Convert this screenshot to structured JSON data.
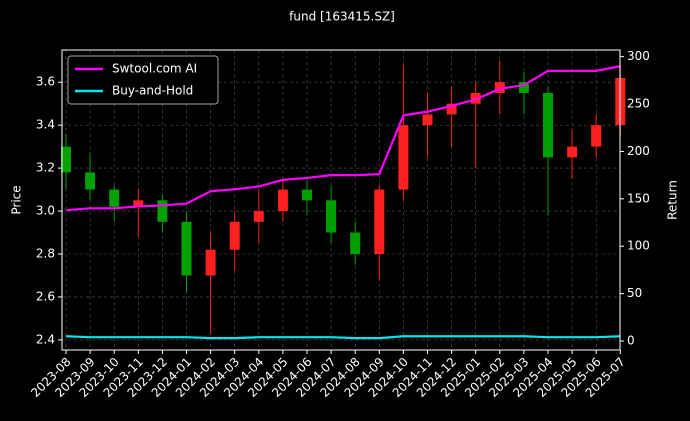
{
  "chart_data": {
    "type": "candlestick",
    "title": "fund [163415.SZ]",
    "ylabel": "Price",
    "y2label": "Return",
    "x": [
      "2023-08",
      "2023-09",
      "2023-10",
      "2023-11",
      "2023-12",
      "2024-01",
      "2024-02",
      "2024-03",
      "2024-04",
      "2024-05",
      "2024-06",
      "2024-07",
      "2024-08",
      "2024-09",
      "2024-10",
      "2024-11",
      "2024-12",
      "2025-01",
      "2025-02",
      "2025-03",
      "2025-04",
      "2025-05",
      "2025-06",
      "2025-07"
    ],
    "open": [
      3.3,
      3.18,
      3.1,
      3.02,
      3.05,
      2.95,
      2.7,
      2.82,
      2.95,
      3.0,
      3.1,
      3.05,
      2.9,
      2.8,
      3.1,
      3.4,
      3.45,
      3.5,
      3.55,
      3.6,
      3.55,
      3.25,
      3.3,
      3.4
    ],
    "high": [
      3.36,
      3.27,
      3.12,
      3.1,
      3.08,
      3.0,
      2.9,
      3.0,
      3.1,
      3.15,
      3.16,
      3.12,
      2.95,
      3.12,
      3.68,
      3.55,
      3.58,
      3.6,
      3.7,
      3.65,
      3.58,
      3.38,
      3.45,
      3.68
    ],
    "low": [
      3.1,
      3.05,
      2.95,
      2.88,
      2.9,
      2.62,
      2.43,
      2.72,
      2.85,
      2.95,
      2.98,
      2.85,
      2.75,
      2.68,
      3.05,
      3.25,
      3.3,
      3.2,
      3.45,
      3.45,
      2.98,
      3.15,
      3.25,
      3.35
    ],
    "close": [
      3.18,
      3.1,
      3.02,
      3.05,
      2.95,
      2.7,
      2.82,
      2.95,
      3.0,
      3.1,
      3.05,
      2.9,
      2.8,
      3.1,
      3.4,
      3.45,
      3.5,
      3.55,
      3.6,
      3.55,
      3.25,
      3.3,
      3.4,
      3.62
    ],
    "up_color": "#ff2020",
    "down_color": "#00a000",
    "series": [
      {
        "name": "Swtool.com AI",
        "color": "#ff00ff",
        "axis": "y2",
        "values": [
          138,
          140,
          140,
          142,
          143,
          145,
          158,
          160,
          163,
          170,
          172,
          175,
          175,
          176,
          238,
          242,
          248,
          255,
          266,
          270,
          285,
          285,
          285,
          290
        ]
      },
      {
        "name": "Buy-and-Hold",
        "color": "#00e5ee",
        "axis": "y2",
        "values": [
          5,
          4,
          4,
          4,
          4,
          4,
          3,
          3,
          4,
          4,
          4,
          4,
          3,
          3,
          5,
          5,
          5,
          5,
          5,
          5,
          4,
          4,
          4,
          5
        ]
      }
    ],
    "ylim": [
      2.353,
      3.75
    ],
    "yticks": [
      2.4,
      2.6,
      2.8,
      {
        "value": 3,
        "label": "3.0"
      },
      3.2,
      3.4,
      3.6
    ],
    "y2lim": [
      -9.5,
      307
    ],
    "y2ticks": [
      0,
      50,
      100,
      150,
      200,
      250,
      300
    ],
    "grid": true,
    "legend": "upper left"
  }
}
